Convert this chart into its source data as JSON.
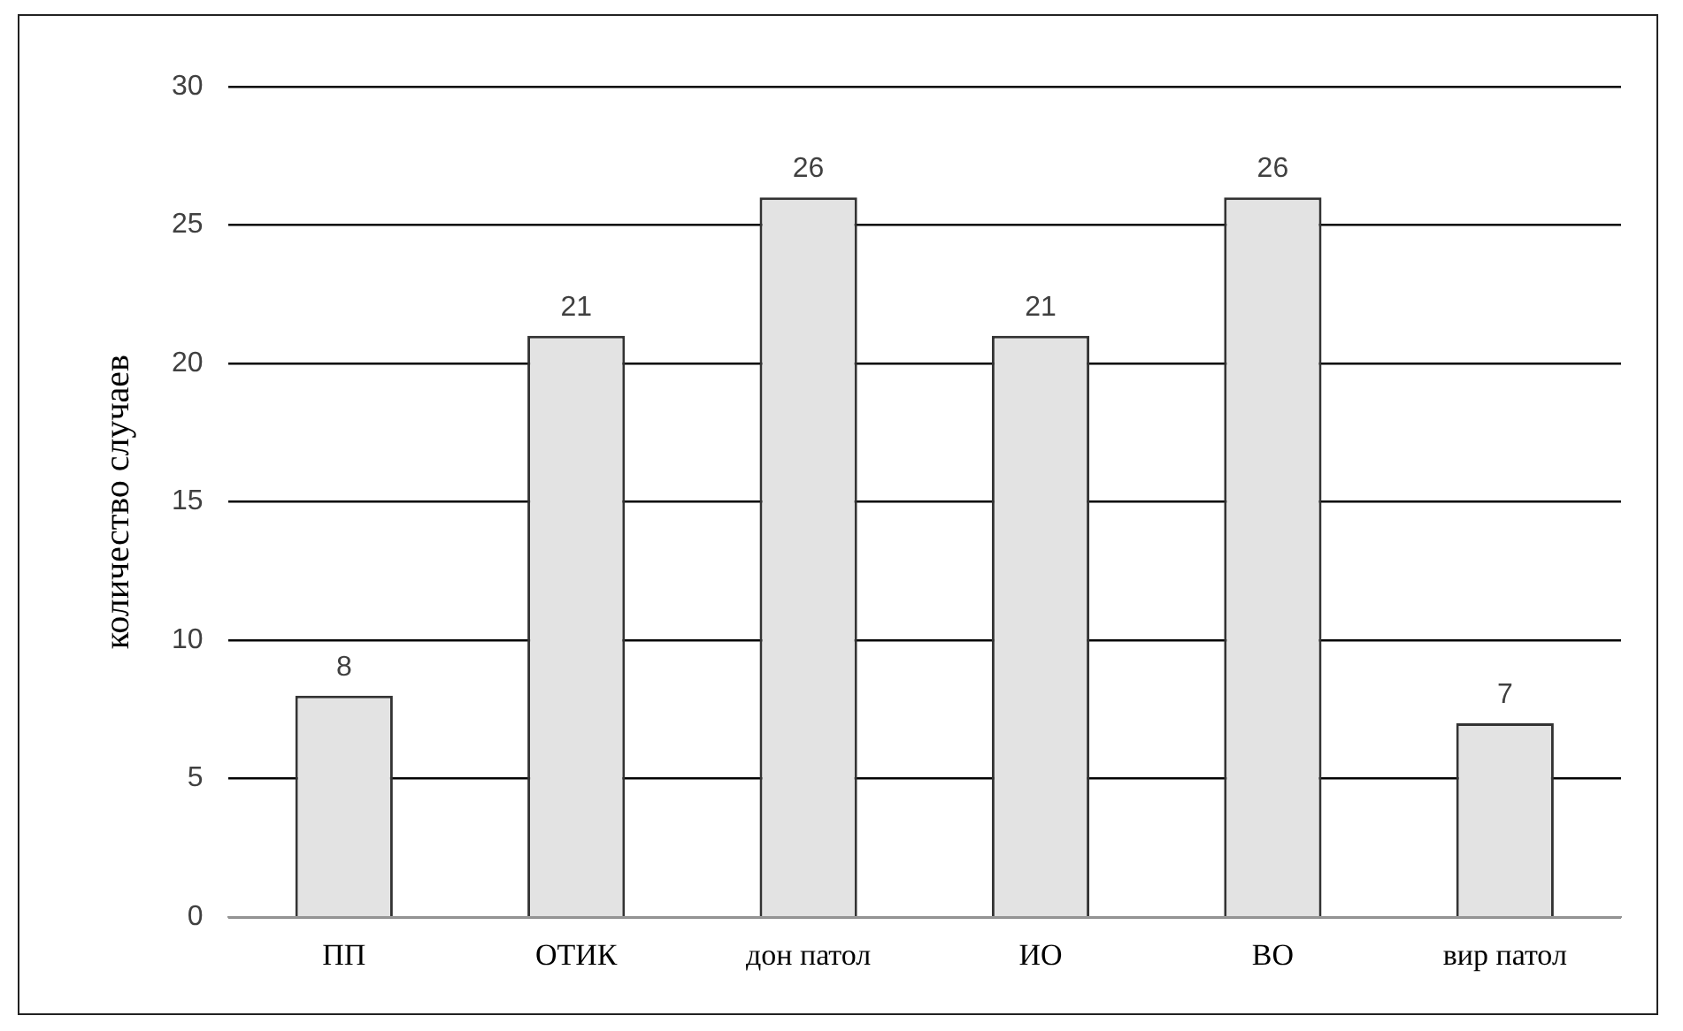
{
  "chart_data": {
    "type": "bar",
    "ylabel": "количество случаев",
    "categories": [
      "ПП",
      "ОТИК",
      "дон патол",
      "ИО",
      "ВО",
      "вир патол"
    ],
    "values": [
      8,
      21,
      26,
      21,
      26,
      7
    ],
    "color": "#e3e3e3",
    "ylim": [
      0,
      30
    ],
    "yticks": [
      0,
      5,
      10,
      15,
      20,
      25,
      30
    ],
    "grid": "y",
    "data_labels": true,
    "legend": false
  }
}
